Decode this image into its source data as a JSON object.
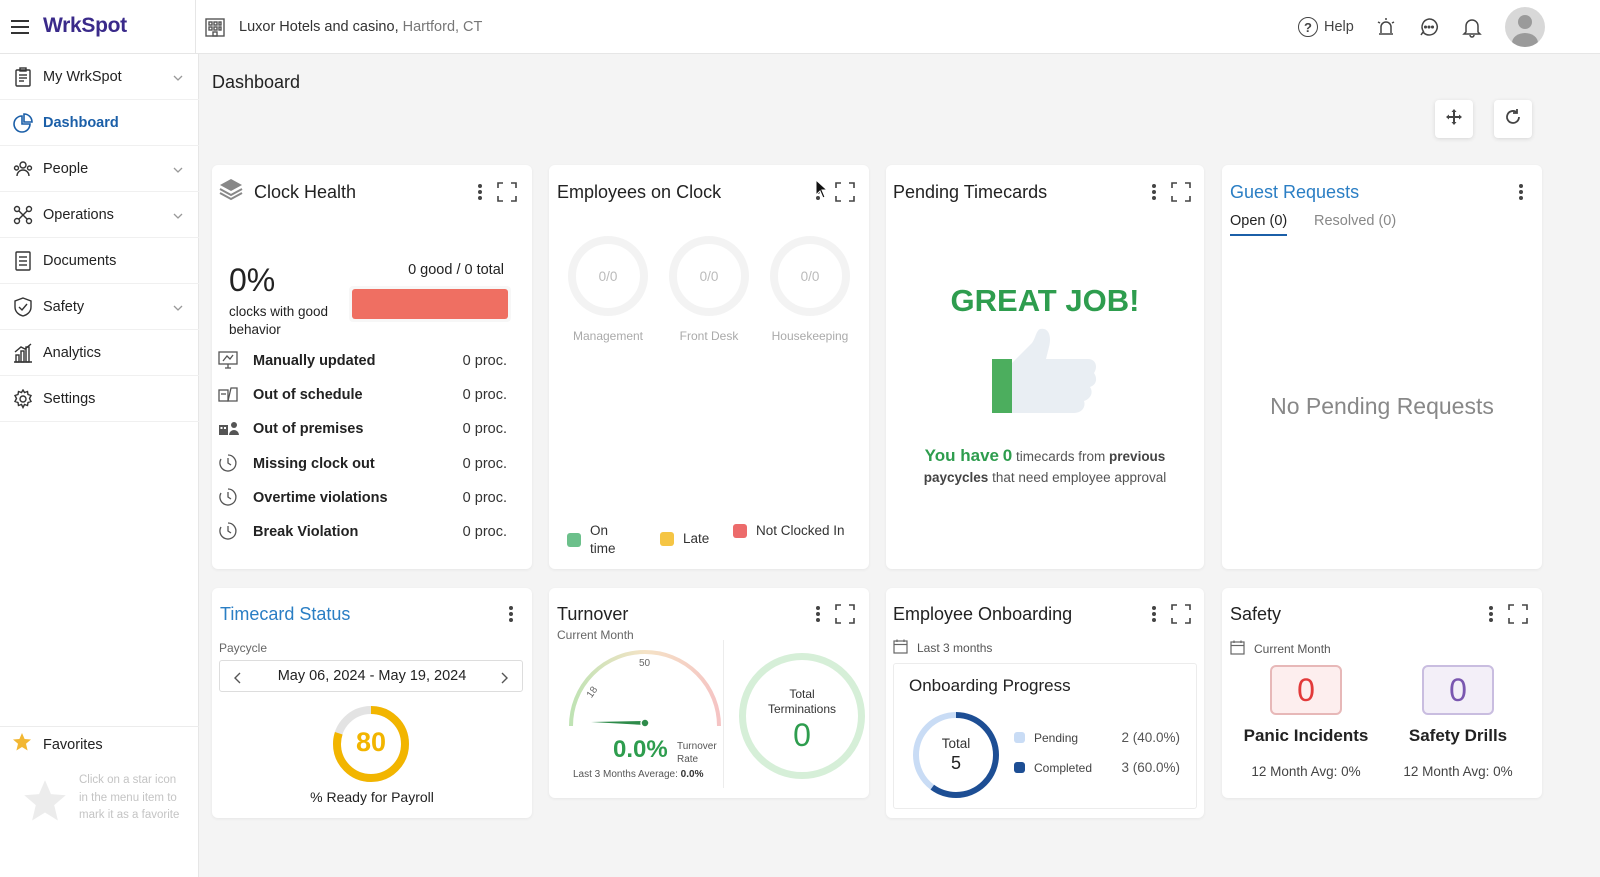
{
  "app": {
    "logo": "WrkSpot",
    "property_name": "Luxor Hotels and casino,",
    "property_location": "Hartford, CT",
    "help_label": "Help"
  },
  "sidebar": {
    "items": [
      {
        "label": "My WrkSpot",
        "icon": "clipboard-icon",
        "has_submenu": true
      },
      {
        "label": "Dashboard",
        "icon": "pie-chart-icon",
        "active": true
      },
      {
        "label": "People",
        "icon": "people-icon",
        "has_submenu": true
      },
      {
        "label": "Operations",
        "icon": "operations-icon",
        "has_submenu": true
      },
      {
        "label": "Documents",
        "icon": "document-icon"
      },
      {
        "label": "Safety",
        "icon": "shield-icon",
        "has_submenu": true
      },
      {
        "label": "Analytics",
        "icon": "bar-chart-icon"
      },
      {
        "label": "Settings",
        "icon": "gear-icon"
      }
    ],
    "favorites_label": "Favorites",
    "favorites_hint": "Click on a star icon in the menu item to mark it as a favorite"
  },
  "page": {
    "title": "Dashboard"
  },
  "clock_health": {
    "title": "Clock Health",
    "percent": "0%",
    "caption": "clocks with good behavior",
    "good_total": "0 good / 0 total",
    "rows": [
      {
        "label": "Manually updated",
        "value": "0 proc.",
        "icon": "monitor-icon"
      },
      {
        "label": "Out of schedule",
        "value": "0 proc.",
        "icon": "calendar-icon"
      },
      {
        "label": "Out of premises",
        "value": "0 proc.",
        "icon": "building-person-icon"
      },
      {
        "label": "Missing clock out",
        "value": "0 proc.",
        "icon": "clock-icon"
      },
      {
        "label": "Overtime violations",
        "value": "0 proc.",
        "icon": "clock-icon"
      },
      {
        "label": "Break Violation",
        "value": "0 proc.",
        "icon": "clock-icon"
      }
    ]
  },
  "employees_on_clock": {
    "title": "Employees on Clock",
    "departments": [
      {
        "name": "Management",
        "value": "0/0"
      },
      {
        "name": "Front Desk",
        "value": "0/0"
      },
      {
        "name": "Housekeeping",
        "value": "0/0"
      }
    ],
    "legend": [
      {
        "label": "On time",
        "color": "#6cc08b"
      },
      {
        "label": "Late",
        "color": "#f5c544"
      },
      {
        "label": "Not Clocked In",
        "color": "#ec6b6b"
      }
    ]
  },
  "pending_timecards": {
    "title": "Pending Timecards",
    "headline": "GREAT JOB!",
    "msg_you_have": "You have",
    "msg_count": "0",
    "msg_timecards_from": "timecards from",
    "msg_previous": "previous",
    "msg_paycycles": "paycycles",
    "msg_tail": "that need employee approval"
  },
  "guest_requests": {
    "title": "Guest Requests",
    "tabs": [
      {
        "label": "Open (0)",
        "active": true
      },
      {
        "label": "Resolved (0)"
      }
    ],
    "empty": "No Pending Requests"
  },
  "timecard_status": {
    "title": "Timecard Status",
    "paycycle_label": "Paycycle",
    "paycycle_range": "May 06, 2024 - May 19, 2024",
    "ready_value": "80",
    "ready_fraction": 0.8,
    "ready_label": "% Ready for Payroll"
  },
  "turnover": {
    "title": "Turnover",
    "period": "Current Month",
    "gauge_tick_18": "18",
    "gauge_tick_50": "50",
    "rate": "0.0%",
    "rate_label_1": "Turnover",
    "rate_label_2": "Rate",
    "avg_label": "Last 3 Months Average:",
    "avg_value": "0.0%",
    "terminations_label_1": "Total",
    "terminations_label_2": "Terminations",
    "terminations_value": "0"
  },
  "onboarding": {
    "title": "Employee Onboarding",
    "period": "Last 3 months",
    "subtitle": "Onboarding Progress",
    "total_label": "Total",
    "total_value": "5",
    "items": [
      {
        "label": "Pending",
        "value": "2 (40.0%)",
        "color": "#c9dcf5",
        "fraction": 0.4
      },
      {
        "label": "Completed",
        "value": "3 (60.0%)",
        "color": "#1d4e94",
        "fraction": 0.6
      }
    ]
  },
  "safety": {
    "title": "Safety",
    "period": "Current Month",
    "metrics": [
      {
        "value": "0",
        "label": "Panic Incidents",
        "avg": "12 Month Avg: 0%"
      },
      {
        "value": "0",
        "label": "Safety Drills",
        "avg": "12 Month Avg: 0%"
      }
    ]
  }
}
